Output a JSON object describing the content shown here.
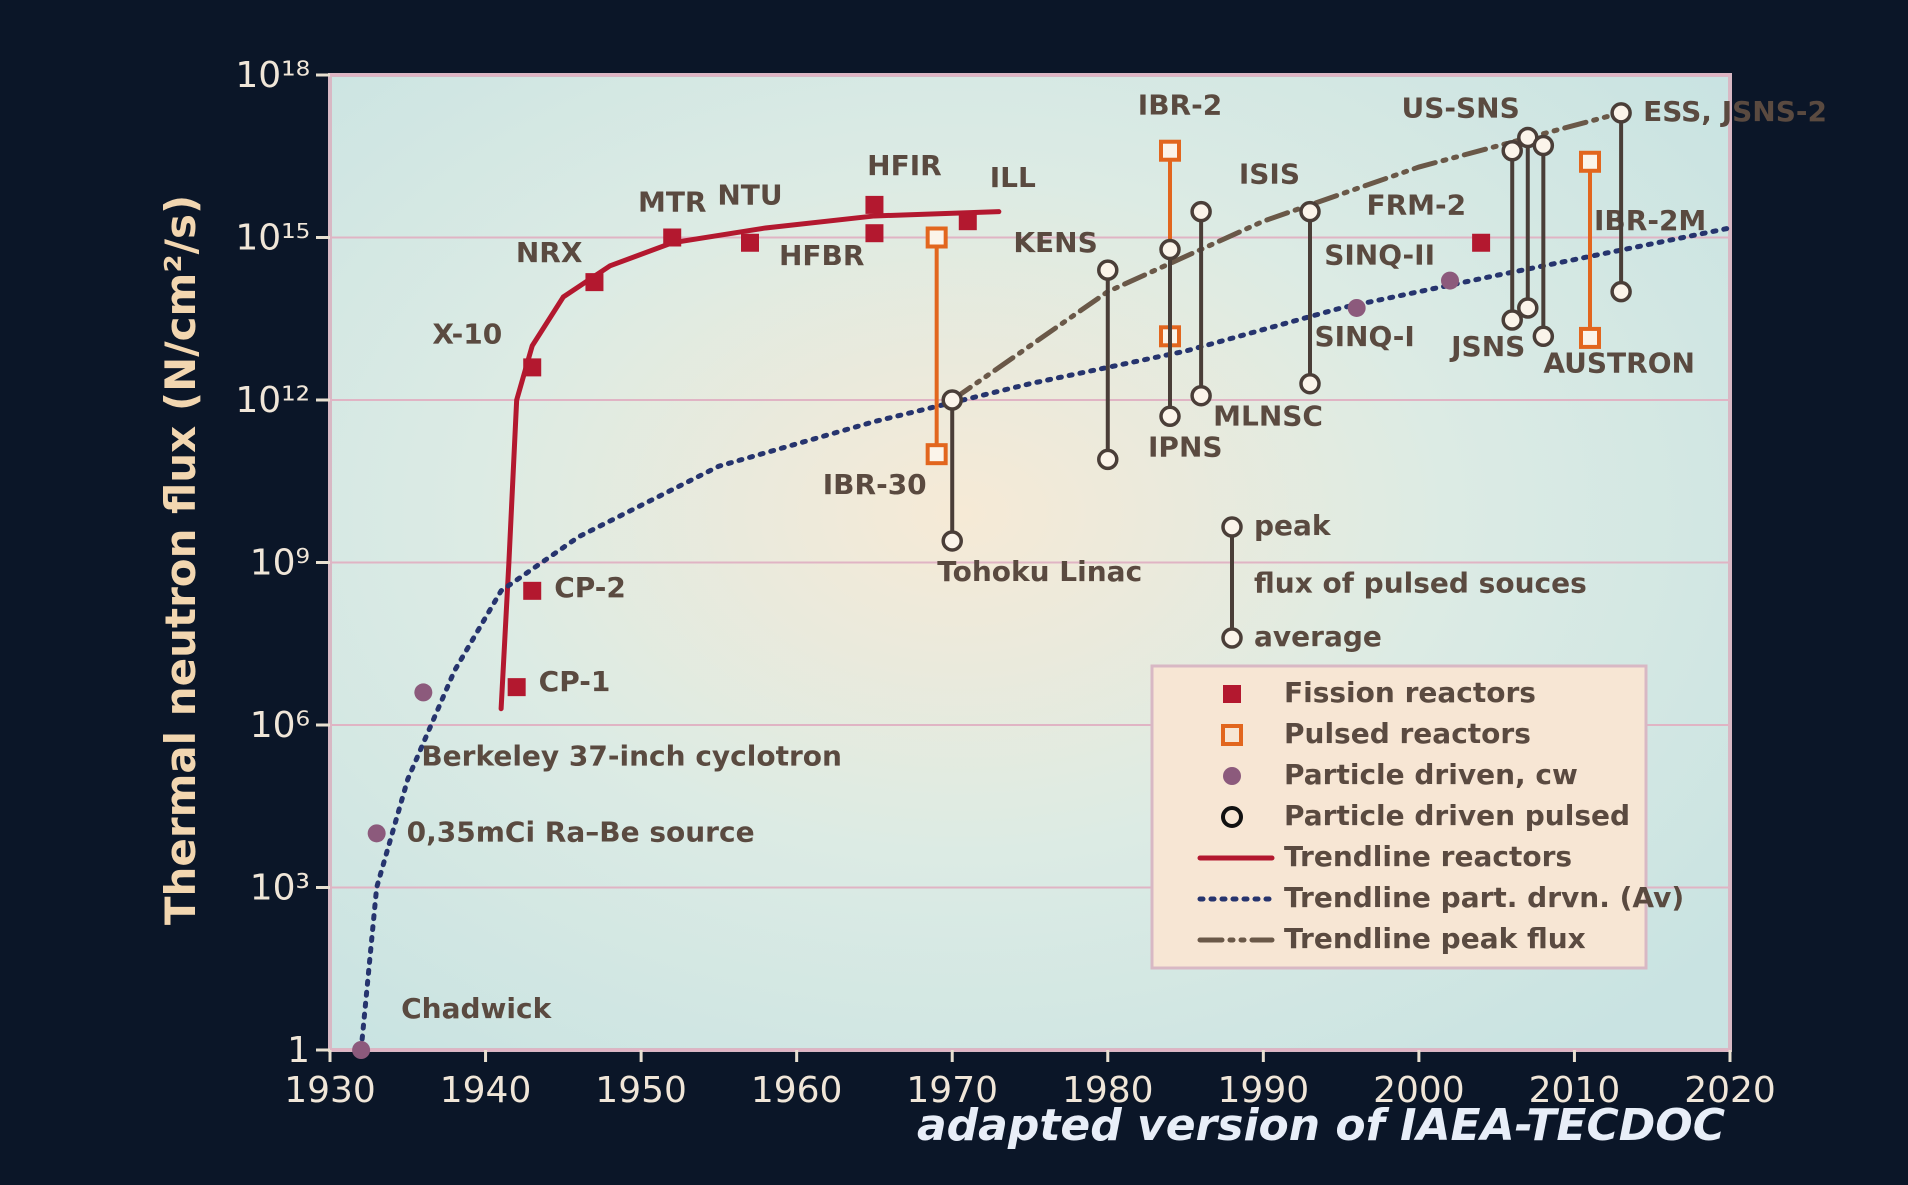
{
  "chart_data": {
    "type": "scatter",
    "y_scale": "log",
    "ylabel": "Thermal neutron flux (N/cm²/s)",
    "note": "adapted version of IAEA-TECDOC",
    "xlim": [
      1930,
      2020
    ],
    "xticks": [
      1930,
      1940,
      1950,
      1960,
      1970,
      1980,
      1990,
      2000,
      2010,
      2020
    ],
    "ylim": [
      1,
      1e+18
    ],
    "yticks": [
      1,
      {
        "value": 1000.0,
        "label": "10³"
      },
      {
        "value": 1000000.0,
        "label": "10⁶"
      },
      {
        "value": 1000000000.0,
        "label": "10⁹"
      },
      {
        "value": 1000000000000.0,
        "label": "10¹²"
      },
      {
        "value": 1000000000000000.0,
        "label": "10¹⁵"
      },
      {
        "value": 1e+18,
        "label": "10¹⁸"
      }
    ],
    "grid": true,
    "pulse_key": {
      "peak": "peak",
      "caption": "flux of pulsed souces",
      "average": "average"
    },
    "series": [
      {
        "name": "Fission reactors",
        "kind": "point",
        "marker": "filled-square",
        "color": "#b3182f",
        "x": [
          1942,
          1943,
          1943,
          1947,
          1952,
          1957,
          1965,
          1965,
          1971,
          2004
        ],
        "values": [
          5000000.0,
          300000000.0,
          4000000000000.0,
          150000000000000.0,
          1000000000000000.0,
          800000000000000.0,
          4000000000000000.0,
          1200000000000000.0,
          2000000000000000.0,
          800000000000000.0
        ],
        "labels": [
          "CP-1",
          "CP-2",
          "X-10",
          "NRX",
          "MTR",
          "NTU",
          "HFIR",
          "HFBR",
          "ILL",
          "FRM-2"
        ]
      },
      {
        "name": "Pulsed reactors",
        "kind": "pulsed",
        "marker": "open-square",
        "color": "#e2661e",
        "x": [
          1969,
          1984,
          2011
        ],
        "values": [
          1000000000000000.0,
          4e+16,
          2.5e+16
        ],
        "average": [
          100000000000.0,
          15000000000000.0,
          14000000000000.0
        ],
        "labels": [
          "IBR-30",
          "IBR-2",
          "IBR-2M"
        ],
        "label_colors": [
          "#e2661e",
          "#e8282a",
          "#e8282a"
        ]
      },
      {
        "name": "Particle driven, cw",
        "kind": "point",
        "marker": "dot",
        "color": "#8c5a7c",
        "x": [
          1932,
          1933,
          1936,
          1996,
          2002
        ],
        "values": [
          1,
          10000.0,
          4000000.0,
          50000000000000.0,
          160000000000000.0
        ],
        "labels": [
          "Chadwick",
          "0,35mCi Ra–Be source",
          "Berkeley 37-inch cyclotron",
          "SINQ-I",
          "SINQ-II"
        ]
      },
      {
        "name": "Particle driven pulsed",
        "kind": "pulsed",
        "marker": "open-circle",
        "color": "#4a3e38",
        "x": [
          1970,
          1980,
          1984,
          1986,
          1993,
          2007,
          2006,
          2008,
          2013
        ],
        "values": [
          1000000000000.0,
          250000000000000.0,
          600000000000000.0,
          3000000000000000.0,
          3000000000000000.0,
          7e+16,
          4e+16,
          5e+16,
          2e+17
        ],
        "average": [
          2500000000.0,
          80000000000.0,
          500000000000.0,
          1200000000000.0,
          2000000000000.0,
          50000000000000.0,
          30000000000000.0,
          15000000000000.0,
          100000000000000.0
        ],
        "labels": [
          "Tohoku Linac",
          "KENS",
          "IPNS",
          "MLNSC",
          "ISIS",
          "US-SNS",
          "JSNS",
          "AUSTRON",
          "ESS, JSNS-2"
        ]
      },
      {
        "name": "Trendline reactors",
        "kind": "line",
        "dash": "solid",
        "color": "#b3182f",
        "x": [
          1941,
          1941.5,
          1942,
          1943,
          1945,
          1948,
          1952,
          1958,
          1965,
          1973
        ],
        "values": [
          2000000.0,
          1000000000.0,
          1000000000000.0,
          10000000000000.0,
          80000000000000.0,
          300000000000000.0,
          800000000000000.0,
          1500000000000000.0,
          2500000000000000.0,
          3000000000000000.0
        ]
      },
      {
        "name": "Trendline part. drvn. (Av)",
        "kind": "line",
        "dash": "dot",
        "color": "#26346e",
        "x": [
          1932,
          1933,
          1935,
          1938,
          1941,
          1946,
          1955,
          1965,
          1975,
          1985,
          1995,
          2005,
          2020
        ],
        "values": [
          1,
          1000.0,
          100000.0,
          10000000.0,
          300000000.0,
          3000000000.0,
          60000000000.0,
          400000000000.0,
          2000000000000.0,
          8000000000000.0,
          50000000000000.0,
          200000000000000.0,
          1500000000000000.0
        ]
      },
      {
        "name": "Trendline peak flux",
        "kind": "line",
        "dash": "dashdot",
        "color": "#6a5848",
        "x": [
          1970,
          1980,
          1990,
          2000,
          2013
        ],
        "values": [
          1000000000000.0,
          100000000000000.0,
          2000000000000000.0,
          2e+16,
          2e+17
        ]
      }
    ]
  }
}
